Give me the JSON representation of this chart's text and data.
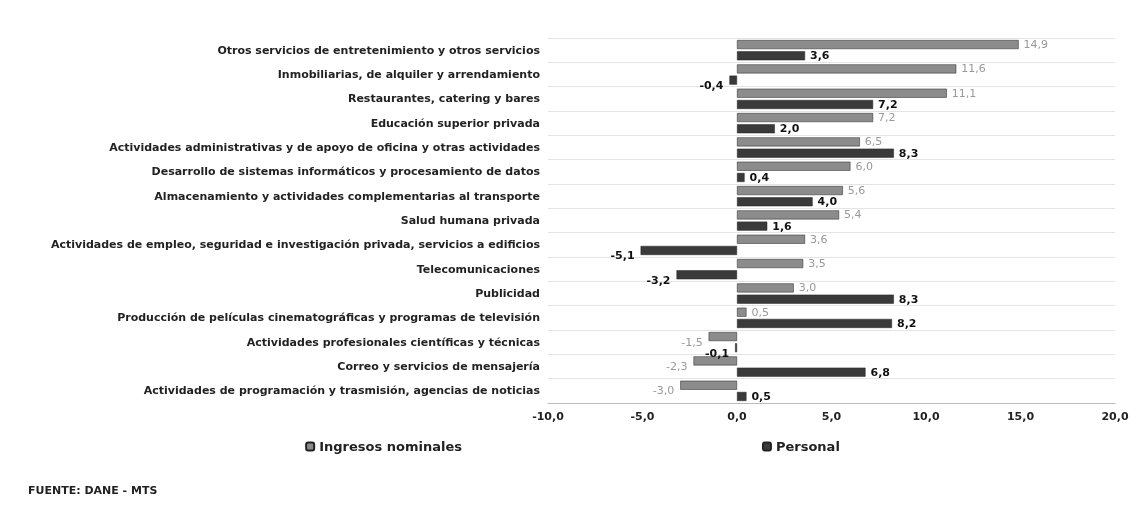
{
  "chart_data": {
    "type": "bar",
    "orientation": "horizontal",
    "categories": [
      "Otros servicios de entretenimiento y otros servicios",
      "Inmobiliarias, de alquiler y arrendamiento",
      "Restaurantes, catering y bares",
      "Educación superior privada",
      "Actividades administrativas y de apoyo de oficina y otras actividades",
      "Desarrollo de sistemas informáticos y procesamiento de datos",
      "Almacenamiento y actividades complementarias al transporte",
      "Salud humana privada",
      "Actividades de empleo, seguridad e investigación privada, servicios a edificios",
      "Telecomunicaciones",
      "Publicidad",
      "Producción de películas cinematográficas y programas de televisión",
      "Actividades profesionales científicas y técnicas",
      "Correo y servicios de mensajería",
      "Actividades de programación y trasmisión, agencias de noticias"
    ],
    "series": [
      {
        "name": "Ingresos nominales",
        "color": "#8c8c8c",
        "values": [
          14.9,
          11.6,
          11.1,
          7.2,
          6.5,
          6.0,
          5.6,
          5.4,
          3.6,
          3.5,
          3.0,
          0.5,
          -1.5,
          -2.3,
          -3.0
        ],
        "value_labels": [
          "14,9",
          "11,6",
          "11,1",
          "7,2",
          "6,5",
          "6,0",
          "5,6",
          "5,4",
          "3,6",
          "3,5",
          "3,0",
          "0,5",
          "-1,5",
          "-2,3",
          "-3,0"
        ]
      },
      {
        "name": "Personal",
        "color": "#3a3a3a",
        "values": [
          3.6,
          -0.4,
          7.2,
          2.0,
          8.3,
          0.4,
          4.0,
          1.6,
          -5.1,
          -3.2,
          8.3,
          8.2,
          -0.1,
          6.8,
          0.5
        ],
        "value_labels": [
          "3,6",
          "-0,4",
          "7,2",
          "2,0",
          "8,3",
          "0,4",
          "4,0",
          "1,6",
          "-5,1",
          "-3,2",
          "8,3",
          "8,2",
          "-0,1",
          "6,8",
          "0,5"
        ]
      }
    ],
    "xlim": [
      -10,
      20
    ],
    "xticks": [
      {
        "value": -10,
        "label": "-10,0"
      },
      {
        "value": -5,
        "label": "-5,0"
      },
      {
        "value": 0,
        "label": "0,0"
      },
      {
        "value": 5,
        "label": "5,0"
      },
      {
        "value": 10,
        "label": "10,0"
      },
      {
        "value": 15,
        "label": "15,0"
      },
      {
        "value": 20,
        "label": "20,0"
      }
    ],
    "grid": "y",
    "legend": "bottom",
    "annotations": [
      "FUENTE: DANE - MTS"
    ]
  }
}
